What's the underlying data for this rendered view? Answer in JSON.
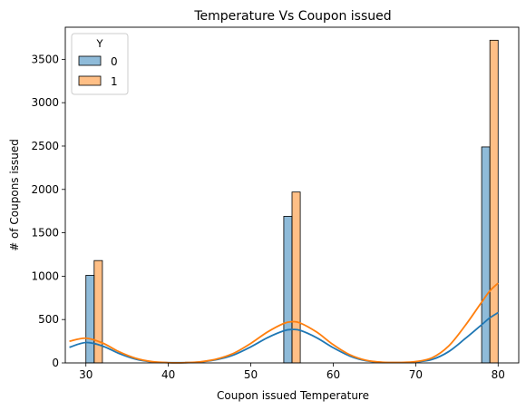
{
  "chart_data": {
    "type": "bar",
    "title": "Temperature Vs Coupon issued",
    "xlabel": "Coupon issued Temperature",
    "ylabel": "# of Coupons issued",
    "xlim": [
      27.5,
      82.5
    ],
    "ylim": [
      0,
      3870
    ],
    "xticks": [
      30,
      40,
      50,
      60,
      70,
      80
    ],
    "yticks": [
      0,
      500,
      1000,
      1500,
      2000,
      2500,
      3000,
      3500
    ],
    "grid": false,
    "legend": {
      "title": "Y",
      "position": "top-left"
    },
    "categories": [
      30,
      55,
      80
    ],
    "series": [
      {
        "name": "0",
        "color": "#1f77b4",
        "values": [
          1010,
          1690,
          2490
        ],
        "kde": [
          [
            28,
            180
          ],
          [
            30,
            235
          ],
          [
            32,
            195
          ],
          [
            34,
            110
          ],
          [
            36,
            45
          ],
          [
            38,
            12
          ],
          [
            40,
            3
          ],
          [
            42,
            3
          ],
          [
            44,
            12
          ],
          [
            46,
            40
          ],
          [
            48,
            95
          ],
          [
            50,
            185
          ],
          [
            52,
            290
          ],
          [
            54,
            370
          ],
          [
            55,
            385
          ],
          [
            56,
            375
          ],
          [
            58,
            290
          ],
          [
            60,
            175
          ],
          [
            62,
            80
          ],
          [
            64,
            25
          ],
          [
            66,
            6
          ],
          [
            68,
            4
          ],
          [
            70,
            10
          ],
          [
            72,
            40
          ],
          [
            74,
            130
          ],
          [
            76,
            280
          ],
          [
            78,
            440
          ],
          [
            79,
            520
          ],
          [
            80,
            580
          ]
        ]
      },
      {
        "name": "1",
        "color": "#ff7f0e",
        "values": [
          1180,
          1970,
          3720
        ],
        "kde": [
          [
            28,
            250
          ],
          [
            30,
            285
          ],
          [
            32,
            230
          ],
          [
            34,
            130
          ],
          [
            36,
            55
          ],
          [
            38,
            15
          ],
          [
            40,
            3
          ],
          [
            42,
            3
          ],
          [
            44,
            14
          ],
          [
            46,
            48
          ],
          [
            48,
            115
          ],
          [
            50,
            225
          ],
          [
            52,
            355
          ],
          [
            54,
            455
          ],
          [
            55,
            475
          ],
          [
            56,
            460
          ],
          [
            58,
            355
          ],
          [
            60,
            210
          ],
          [
            62,
            95
          ],
          [
            64,
            30
          ],
          [
            66,
            8
          ],
          [
            68,
            5
          ],
          [
            70,
            15
          ],
          [
            72,
            60
          ],
          [
            74,
            195
          ],
          [
            76,
            430
          ],
          [
            78,
            700
          ],
          [
            79,
            830
          ],
          [
            80,
            920
          ]
        ]
      }
    ]
  }
}
